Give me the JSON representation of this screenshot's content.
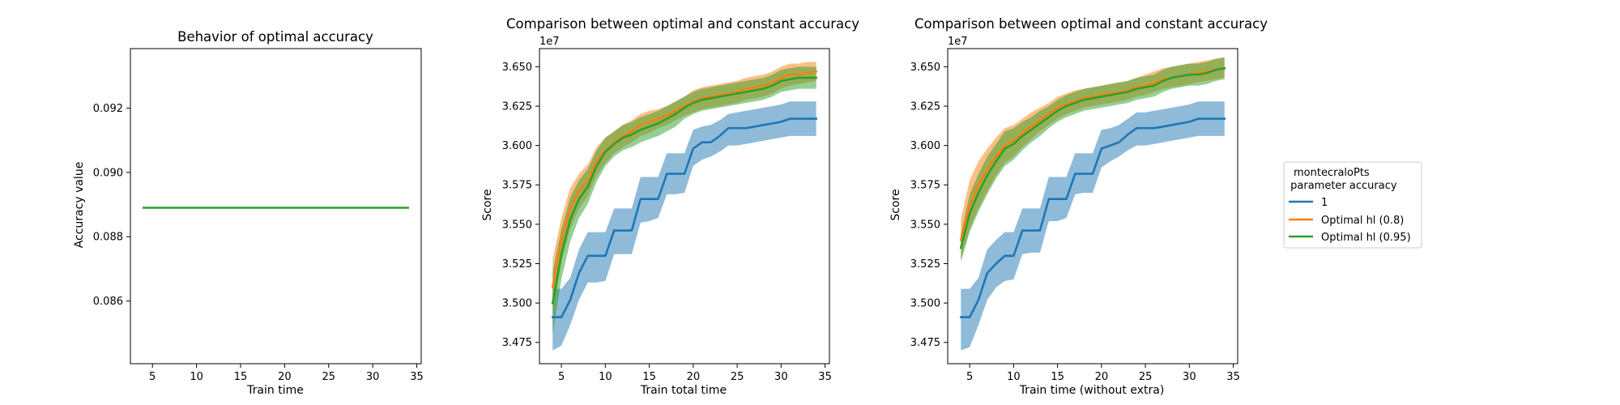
{
  "colors": {
    "blue": "#1f77b4",
    "orange": "#ff7f0e",
    "green": "#2ca02c"
  },
  "chart_data": [
    {
      "type": "line",
      "title": "Behavior of optimal accuracy",
      "xlabel": "Train time",
      "ylabel": "Accuracy value",
      "offset_text": "",
      "xlim": [
        2.5,
        35.5
      ],
      "ylim": [
        0.08405,
        0.09385
      ],
      "xticks": [
        5,
        10,
        15,
        20,
        25,
        30,
        35
      ],
      "yticks": [
        0.086,
        0.088,
        0.09,
        0.092
      ],
      "ytick_labels": [
        "0.086",
        "0.088",
        "0.090",
        "0.092"
      ],
      "grid": false,
      "series": [
        {
          "color": "green",
          "x": [
            4,
            34
          ],
          "y": [
            0.0889,
            0.0889
          ]
        }
      ]
    },
    {
      "type": "line",
      "title": "Comparison between optimal and constant accuracy",
      "xlabel": "Train total time",
      "ylabel": "Score",
      "offset_text": "1e7",
      "xlim": [
        2.5,
        35.5
      ],
      "ylim": [
        3.4615,
        3.6615
      ],
      "xticks": [
        5,
        10,
        15,
        20,
        25,
        30,
        35
      ],
      "yticks": [
        3.475,
        3.5,
        3.525,
        3.55,
        3.575,
        3.6,
        3.625,
        3.65
      ],
      "ytick_labels": [
        "3.475",
        "3.500",
        "3.525",
        "3.550",
        "3.575",
        "3.600",
        "3.625",
        "3.650"
      ],
      "grid": false,
      "series": [
        {
          "name": "1",
          "color": "blue",
          "x": [
            4,
            5,
            6,
            7,
            8,
            9,
            10,
            11,
            12,
            13,
            14,
            15,
            16,
            17,
            18,
            19,
            20,
            21,
            22,
            23,
            24,
            25,
            26,
            27,
            28,
            29,
            30,
            31,
            32,
            33,
            34
          ],
          "y": [
            3.491,
            3.491,
            3.502,
            3.519,
            3.53,
            3.53,
            3.53,
            3.546,
            3.546,
            3.546,
            3.566,
            3.566,
            3.566,
            3.582,
            3.582,
            3.582,
            3.598,
            3.602,
            3.602,
            3.606,
            3.611,
            3.611,
            3.611,
            3.612,
            3.613,
            3.614,
            3.615,
            3.617,
            3.617,
            3.617,
            3.617
          ],
          "band_low": [
            3.47,
            3.473,
            3.486,
            3.502,
            3.513,
            3.513,
            3.514,
            3.531,
            3.531,
            3.531,
            3.551,
            3.552,
            3.554,
            3.569,
            3.569,
            3.57,
            3.587,
            3.591,
            3.593,
            3.596,
            3.6,
            3.6,
            3.601,
            3.602,
            3.603,
            3.604,
            3.605,
            3.606,
            3.606,
            3.606,
            3.606
          ],
          "band_high": [
            3.509,
            3.509,
            3.516,
            3.534,
            3.545,
            3.545,
            3.545,
            3.56,
            3.56,
            3.56,
            3.58,
            3.58,
            3.58,
            3.595,
            3.595,
            3.595,
            3.61,
            3.612,
            3.613,
            3.616,
            3.62,
            3.621,
            3.622,
            3.623,
            3.624,
            3.625,
            3.626,
            3.628,
            3.628,
            3.628,
            3.628
          ]
        },
        {
          "name": "Optimal hl (0.8)",
          "color": "orange",
          "x": [
            4,
            5,
            6,
            7,
            8,
            9,
            10,
            11,
            12,
            13,
            14,
            15,
            16,
            17,
            18,
            19,
            20,
            21,
            22,
            23,
            24,
            25,
            26,
            27,
            28,
            29,
            30,
            31,
            32,
            33,
            34
          ],
          "y": [
            3.51,
            3.54,
            3.56,
            3.571,
            3.578,
            3.59,
            3.597,
            3.602,
            3.606,
            3.609,
            3.613,
            3.615,
            3.617,
            3.619,
            3.622,
            3.625,
            3.628,
            3.63,
            3.631,
            3.632,
            3.633,
            3.634,
            3.636,
            3.637,
            3.638,
            3.64,
            3.643,
            3.645,
            3.645,
            3.646,
            3.647
          ],
          "band_low": [
            3.492,
            3.526,
            3.547,
            3.56,
            3.568,
            3.581,
            3.589,
            3.595,
            3.599,
            3.602,
            3.606,
            3.608,
            3.611,
            3.613,
            3.616,
            3.619,
            3.621,
            3.623,
            3.624,
            3.625,
            3.626,
            3.627,
            3.629,
            3.63,
            3.631,
            3.633,
            3.636,
            3.638,
            3.639,
            3.64,
            3.641
          ],
          "band_high": [
            3.528,
            3.554,
            3.573,
            3.582,
            3.588,
            3.599,
            3.605,
            3.609,
            3.613,
            3.616,
            3.62,
            3.622,
            3.623,
            3.625,
            3.628,
            3.631,
            3.635,
            3.637,
            3.638,
            3.639,
            3.64,
            3.641,
            3.643,
            3.644,
            3.645,
            3.647,
            3.65,
            3.652,
            3.652,
            3.653,
            3.653
          ]
        },
        {
          "name": "Optimal hl (0.95)",
          "color": "green",
          "x": [
            4,
            5,
            6,
            7,
            8,
            9,
            10,
            11,
            12,
            13,
            14,
            15,
            16,
            17,
            18,
            19,
            20,
            21,
            22,
            23,
            24,
            25,
            26,
            27,
            28,
            29,
            30,
            31,
            32,
            33,
            34
          ],
          "y": [
            3.5,
            3.531,
            3.553,
            3.566,
            3.574,
            3.587,
            3.596,
            3.601,
            3.605,
            3.607,
            3.61,
            3.612,
            3.614,
            3.617,
            3.62,
            3.624,
            3.627,
            3.629,
            3.63,
            3.631,
            3.632,
            3.633,
            3.634,
            3.635,
            3.636,
            3.638,
            3.641,
            3.642,
            3.643,
            3.643,
            3.643
          ],
          "band_low": [
            3.48,
            3.515,
            3.539,
            3.554,
            3.563,
            3.577,
            3.587,
            3.593,
            3.597,
            3.599,
            3.602,
            3.604,
            3.606,
            3.609,
            3.612,
            3.617,
            3.62,
            3.622,
            3.623,
            3.624,
            3.625,
            3.626,
            3.627,
            3.628,
            3.629,
            3.631,
            3.634,
            3.635,
            3.636,
            3.636,
            3.636
          ],
          "band_high": [
            3.52,
            3.547,
            3.567,
            3.578,
            3.585,
            3.597,
            3.605,
            3.609,
            3.613,
            3.615,
            3.618,
            3.62,
            3.622,
            3.625,
            3.628,
            3.631,
            3.634,
            3.636,
            3.637,
            3.638,
            3.639,
            3.64,
            3.641,
            3.642,
            3.643,
            3.645,
            3.648,
            3.649,
            3.65,
            3.65,
            3.65
          ]
        }
      ]
    },
    {
      "type": "line",
      "title": "Comparison between optimal and constant accuracy",
      "xlabel": "Train time (without extra)",
      "ylabel": "Score",
      "offset_text": "1e7",
      "xlim": [
        2.5,
        35.5
      ],
      "ylim": [
        3.4615,
        3.6615
      ],
      "xticks": [
        5,
        10,
        15,
        20,
        25,
        30,
        35
      ],
      "yticks": [
        3.475,
        3.5,
        3.525,
        3.55,
        3.575,
        3.6,
        3.625,
        3.65
      ],
      "ytick_labels": [
        "3.475",
        "3.500",
        "3.525",
        "3.550",
        "3.575",
        "3.600",
        "3.625",
        "3.650"
      ],
      "grid": false,
      "legend": {
        "placement": "outside-right",
        "title_lines": [
          "montecraloPts",
          " parameter accuracy"
        ],
        "entries": [
          "1",
          "Optimal hl (0.8)",
          "Optimal hl (0.95)"
        ]
      },
      "series": [
        {
          "name": "1",
          "color": "blue",
          "x": [
            4,
            5,
            6,
            7,
            8,
            9,
            10,
            11,
            12,
            13,
            14,
            15,
            16,
            17,
            18,
            19,
            20,
            21,
            22,
            23,
            24,
            25,
            26,
            27,
            28,
            29,
            30,
            31,
            32,
            33,
            34
          ],
          "y": [
            3.491,
            3.491,
            3.502,
            3.519,
            3.525,
            3.53,
            3.53,
            3.546,
            3.546,
            3.546,
            3.566,
            3.566,
            3.566,
            3.582,
            3.582,
            3.582,
            3.598,
            3.6,
            3.602,
            3.607,
            3.611,
            3.611,
            3.611,
            3.612,
            3.613,
            3.614,
            3.615,
            3.617,
            3.617,
            3.617,
            3.617
          ],
          "band_low": [
            3.47,
            3.472,
            3.486,
            3.502,
            3.51,
            3.514,
            3.515,
            3.531,
            3.532,
            3.532,
            3.552,
            3.552,
            3.554,
            3.569,
            3.57,
            3.57,
            3.586,
            3.59,
            3.593,
            3.597,
            3.6,
            3.6,
            3.601,
            3.602,
            3.603,
            3.604,
            3.605,
            3.606,
            3.606,
            3.606,
            3.606
          ],
          "band_high": [
            3.509,
            3.509,
            3.516,
            3.534,
            3.54,
            3.545,
            3.545,
            3.56,
            3.56,
            3.56,
            3.58,
            3.58,
            3.58,
            3.595,
            3.595,
            3.595,
            3.61,
            3.611,
            3.613,
            3.617,
            3.621,
            3.621,
            3.622,
            3.623,
            3.624,
            3.625,
            3.626,
            3.628,
            3.628,
            3.628,
            3.628
          ]
        },
        {
          "name": "Optimal hl (0.8)",
          "color": "orange",
          "x": [
            4,
            5,
            6,
            7,
            8,
            9,
            10,
            11,
            12,
            13,
            14,
            15,
            16,
            17,
            18,
            19,
            20,
            21,
            22,
            23,
            24,
            25,
            26,
            27,
            28,
            29,
            30,
            31,
            32,
            33,
            34
          ],
          "y": [
            3.54,
            3.562,
            3.575,
            3.585,
            3.593,
            3.6,
            3.603,
            3.608,
            3.612,
            3.616,
            3.62,
            3.624,
            3.626,
            3.628,
            3.63,
            3.631,
            3.632,
            3.633,
            3.634,
            3.635,
            3.637,
            3.638,
            3.64,
            3.642,
            3.643,
            3.644,
            3.645,
            3.646,
            3.647,
            3.648,
            3.649
          ],
          "band_low": [
            3.528,
            3.547,
            3.56,
            3.571,
            3.581,
            3.589,
            3.593,
            3.599,
            3.604,
            3.609,
            3.613,
            3.617,
            3.62,
            3.622,
            3.624,
            3.625,
            3.626,
            3.627,
            3.628,
            3.629,
            3.631,
            3.632,
            3.634,
            3.636,
            3.637,
            3.638,
            3.639,
            3.64,
            3.641,
            3.642,
            3.643
          ],
          "band_high": [
            3.553,
            3.578,
            3.59,
            3.598,
            3.605,
            3.611,
            3.613,
            3.617,
            3.621,
            3.624,
            3.627,
            3.631,
            3.633,
            3.635,
            3.636,
            3.637,
            3.638,
            3.639,
            3.64,
            3.641,
            3.643,
            3.645,
            3.647,
            3.649,
            3.65,
            3.651,
            3.652,
            3.653,
            3.654,
            3.655,
            3.656
          ]
        },
        {
          "name": "Optimal hl (0.95)",
          "color": "green",
          "x": [
            4,
            5,
            6,
            7,
            8,
            9,
            10,
            11,
            12,
            13,
            14,
            15,
            16,
            17,
            18,
            19,
            20,
            21,
            22,
            23,
            24,
            25,
            26,
            27,
            28,
            29,
            30,
            31,
            32,
            33,
            34
          ],
          "y": [
            3.535,
            3.557,
            3.57,
            3.581,
            3.59,
            3.598,
            3.601,
            3.606,
            3.61,
            3.614,
            3.618,
            3.622,
            3.625,
            3.627,
            3.629,
            3.63,
            3.631,
            3.632,
            3.633,
            3.634,
            3.636,
            3.637,
            3.638,
            3.641,
            3.643,
            3.644,
            3.645,
            3.645,
            3.646,
            3.648,
            3.649
          ],
          "band_low": [
            3.526,
            3.545,
            3.558,
            3.569,
            3.579,
            3.587,
            3.591,
            3.597,
            3.602,
            3.606,
            3.611,
            3.615,
            3.618,
            3.62,
            3.622,
            3.623,
            3.624,
            3.625,
            3.626,
            3.627,
            3.629,
            3.63,
            3.631,
            3.634,
            3.636,
            3.637,
            3.638,
            3.638,
            3.639,
            3.641,
            3.642
          ],
          "band_high": [
            3.544,
            3.569,
            3.582,
            3.593,
            3.601,
            3.609,
            3.611,
            3.615,
            3.618,
            3.622,
            3.625,
            3.629,
            3.632,
            3.634,
            3.636,
            3.637,
            3.638,
            3.639,
            3.64,
            3.641,
            3.643,
            3.644,
            3.645,
            3.648,
            3.65,
            3.651,
            3.652,
            3.652,
            3.653,
            3.655,
            3.656
          ]
        }
      ]
    }
  ]
}
